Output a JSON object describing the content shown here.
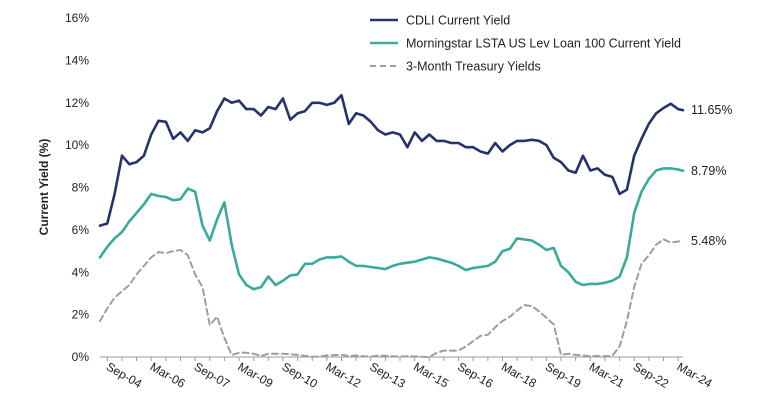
{
  "chart_data": {
    "type": "line",
    "ylabel": "Current Yield (%)",
    "ylim": [
      0,
      16
    ],
    "yticks": [
      0,
      2,
      4,
      6,
      8,
      10,
      12,
      14,
      16
    ],
    "ytick_labels": [
      "0%",
      "2%",
      "4%",
      "6%",
      "8%",
      "10%",
      "12%",
      "14%",
      "16%"
    ],
    "xlim": [
      "2004-06",
      "2024-05"
    ],
    "xtick_positions": [
      "2004-09",
      "2006-03",
      "2007-09",
      "2009-03",
      "2010-09",
      "2012-03",
      "2013-09",
      "2015-03",
      "2016-09",
      "2018-03",
      "2019-09",
      "2021-03",
      "2022-09",
      "2024-03"
    ],
    "xtick_labels": [
      "Sep-04",
      "Mar-06",
      "Sep-07",
      "Mar-09",
      "Sep-10",
      "Mar-12",
      "Sep-13",
      "Mar-15",
      "Sep-16",
      "Mar-18",
      "Sep-19",
      "Mar-21",
      "Sep-22",
      "Mar-24"
    ],
    "grid": false,
    "legend_position": "top-right",
    "series": [
      {
        "name": "CDLI Current Yield",
        "color": "#26326d",
        "style": "solid",
        "end_label": "11.65%",
        "points": [
          [
            "2004-06",
            6.2
          ],
          [
            "2004-09",
            6.3
          ],
          [
            "2004-12",
            7.7
          ],
          [
            "2005-03",
            9.5
          ],
          [
            "2005-06",
            9.1
          ],
          [
            "2005-09",
            9.2
          ],
          [
            "2005-12",
            9.5
          ],
          [
            "2006-03",
            10.5
          ],
          [
            "2006-06",
            11.15
          ],
          [
            "2006-09",
            11.1
          ],
          [
            "2006-12",
            10.3
          ],
          [
            "2007-03",
            10.6
          ],
          [
            "2007-06",
            10.2
          ],
          [
            "2007-09",
            10.7
          ],
          [
            "2007-12",
            10.6
          ],
          [
            "2008-03",
            10.8
          ],
          [
            "2008-06",
            11.6
          ],
          [
            "2008-09",
            12.2
          ],
          [
            "2008-12",
            12.0
          ],
          [
            "2009-03",
            12.1
          ],
          [
            "2009-06",
            11.7
          ],
          [
            "2009-09",
            11.7
          ],
          [
            "2009-12",
            11.4
          ],
          [
            "2010-03",
            11.8
          ],
          [
            "2010-06",
            11.7
          ],
          [
            "2010-09",
            12.2
          ],
          [
            "2010-12",
            11.2
          ],
          [
            "2011-03",
            11.5
          ],
          [
            "2011-06",
            11.6
          ],
          [
            "2011-09",
            12.0
          ],
          [
            "2011-12",
            12.0
          ],
          [
            "2012-03",
            11.9
          ],
          [
            "2012-06",
            12.0
          ],
          [
            "2012-09",
            12.35
          ],
          [
            "2012-12",
            11.0
          ],
          [
            "2013-03",
            11.5
          ],
          [
            "2013-06",
            11.4
          ],
          [
            "2013-09",
            11.1
          ],
          [
            "2013-12",
            10.7
          ],
          [
            "2014-03",
            10.5
          ],
          [
            "2014-06",
            10.6
          ],
          [
            "2014-09",
            10.5
          ],
          [
            "2014-12",
            9.9
          ],
          [
            "2015-03",
            10.6
          ],
          [
            "2015-06",
            10.2
          ],
          [
            "2015-09",
            10.5
          ],
          [
            "2015-12",
            10.2
          ],
          [
            "2016-03",
            10.2
          ],
          [
            "2016-06",
            10.1
          ],
          [
            "2016-09",
            10.1
          ],
          [
            "2016-12",
            9.9
          ],
          [
            "2017-03",
            9.9
          ],
          [
            "2017-06",
            9.7
          ],
          [
            "2017-09",
            9.6
          ],
          [
            "2017-12",
            10.1
          ],
          [
            "2018-03",
            9.7
          ],
          [
            "2018-06",
            10.0
          ],
          [
            "2018-09",
            10.2
          ],
          [
            "2018-12",
            10.2
          ],
          [
            "2019-03",
            10.25
          ],
          [
            "2019-06",
            10.2
          ],
          [
            "2019-09",
            10.0
          ],
          [
            "2019-12",
            9.4
          ],
          [
            "2020-03",
            9.2
          ],
          [
            "2020-06",
            8.8
          ],
          [
            "2020-09",
            8.7
          ],
          [
            "2020-12",
            9.5
          ],
          [
            "2021-03",
            8.8
          ],
          [
            "2021-06",
            8.9
          ],
          [
            "2021-09",
            8.6
          ],
          [
            "2021-12",
            8.5
          ],
          [
            "2022-03",
            7.7
          ],
          [
            "2022-06",
            7.9
          ],
          [
            "2022-09",
            9.5
          ],
          [
            "2022-12",
            10.3
          ],
          [
            "2023-03",
            11.0
          ],
          [
            "2023-06",
            11.5
          ],
          [
            "2023-09",
            11.75
          ],
          [
            "2023-12",
            11.95
          ],
          [
            "2024-03",
            11.7
          ],
          [
            "2024-05",
            11.65
          ]
        ]
      },
      {
        "name": "Morningstar LSTA US Lev Loan 100 Current Yield",
        "color": "#3aaa9c",
        "style": "solid",
        "end_label": "8.79%",
        "points": [
          [
            "2004-06",
            4.7
          ],
          [
            "2004-09",
            5.2
          ],
          [
            "2004-12",
            5.6
          ],
          [
            "2005-03",
            5.9
          ],
          [
            "2005-06",
            6.4
          ],
          [
            "2005-09",
            6.8
          ],
          [
            "2005-12",
            7.2
          ],
          [
            "2006-03",
            7.7
          ],
          [
            "2006-06",
            7.6
          ],
          [
            "2006-09",
            7.55
          ],
          [
            "2006-12",
            7.4
          ],
          [
            "2007-03",
            7.45
          ],
          [
            "2007-06",
            7.95
          ],
          [
            "2007-09",
            7.8
          ],
          [
            "2007-12",
            6.2
          ],
          [
            "2008-03",
            5.5
          ],
          [
            "2008-06",
            6.5
          ],
          [
            "2008-09",
            7.3
          ],
          [
            "2008-12",
            5.3
          ],
          [
            "2009-03",
            3.9
          ],
          [
            "2009-06",
            3.4
          ],
          [
            "2009-09",
            3.2
          ],
          [
            "2009-12",
            3.3
          ],
          [
            "2010-03",
            3.8
          ],
          [
            "2010-06",
            3.4
          ],
          [
            "2010-09",
            3.6
          ],
          [
            "2010-12",
            3.85
          ],
          [
            "2011-03",
            3.9
          ],
          [
            "2011-06",
            4.4
          ],
          [
            "2011-09",
            4.4
          ],
          [
            "2011-12",
            4.6
          ],
          [
            "2012-03",
            4.7
          ],
          [
            "2012-06",
            4.7
          ],
          [
            "2012-09",
            4.75
          ],
          [
            "2012-12",
            4.5
          ],
          [
            "2013-03",
            4.3
          ],
          [
            "2013-06",
            4.3
          ],
          [
            "2013-09",
            4.25
          ],
          [
            "2013-12",
            4.2
          ],
          [
            "2014-03",
            4.15
          ],
          [
            "2014-06",
            4.3
          ],
          [
            "2014-09",
            4.4
          ],
          [
            "2014-12",
            4.45
          ],
          [
            "2015-03",
            4.5
          ],
          [
            "2015-06",
            4.6
          ],
          [
            "2015-09",
            4.7
          ],
          [
            "2015-12",
            4.65
          ],
          [
            "2016-03",
            4.55
          ],
          [
            "2016-06",
            4.45
          ],
          [
            "2016-09",
            4.3
          ],
          [
            "2016-12",
            4.1
          ],
          [
            "2017-03",
            4.2
          ],
          [
            "2017-06",
            4.25
          ],
          [
            "2017-09",
            4.3
          ],
          [
            "2017-12",
            4.5
          ],
          [
            "2018-03",
            5.0
          ],
          [
            "2018-06",
            5.1
          ],
          [
            "2018-09",
            5.6
          ],
          [
            "2018-12",
            5.55
          ],
          [
            "2019-03",
            5.5
          ],
          [
            "2019-06",
            5.3
          ],
          [
            "2019-09",
            5.05
          ],
          [
            "2019-12",
            5.15
          ],
          [
            "2020-03",
            4.3
          ],
          [
            "2020-06",
            4.0
          ],
          [
            "2020-09",
            3.55
          ],
          [
            "2020-12",
            3.4
          ],
          [
            "2021-03",
            3.45
          ],
          [
            "2021-06",
            3.45
          ],
          [
            "2021-09",
            3.5
          ],
          [
            "2021-12",
            3.6
          ],
          [
            "2022-03",
            3.8
          ],
          [
            "2022-06",
            4.7
          ],
          [
            "2022-09",
            6.8
          ],
          [
            "2022-12",
            7.8
          ],
          [
            "2023-03",
            8.4
          ],
          [
            "2023-06",
            8.8
          ],
          [
            "2023-09",
            8.9
          ],
          [
            "2023-12",
            8.9
          ],
          [
            "2024-03",
            8.85
          ],
          [
            "2024-05",
            8.79
          ]
        ]
      },
      {
        "name": "3-Month Treasury Yields",
        "color": "#9e9e9e",
        "style": "dashed",
        "end_label": "5.48%",
        "points": [
          [
            "2004-06",
            1.7
          ],
          [
            "2004-09",
            2.3
          ],
          [
            "2004-12",
            2.8
          ],
          [
            "2005-03",
            3.1
          ],
          [
            "2005-06",
            3.4
          ],
          [
            "2005-09",
            3.9
          ],
          [
            "2005-12",
            4.3
          ],
          [
            "2006-03",
            4.7
          ],
          [
            "2006-06",
            4.95
          ],
          [
            "2006-09",
            4.9
          ],
          [
            "2006-12",
            5.0
          ],
          [
            "2007-03",
            5.05
          ],
          [
            "2007-06",
            4.8
          ],
          [
            "2007-09",
            3.9
          ],
          [
            "2007-12",
            3.3
          ],
          [
            "2008-03",
            1.5
          ],
          [
            "2008-06",
            1.9
          ],
          [
            "2008-09",
            0.9
          ],
          [
            "2008-12",
            0.1
          ],
          [
            "2009-03",
            0.2
          ],
          [
            "2009-06",
            0.2
          ],
          [
            "2009-09",
            0.15
          ],
          [
            "2009-12",
            0.05
          ],
          [
            "2010-03",
            0.15
          ],
          [
            "2010-06",
            0.15
          ],
          [
            "2010-09",
            0.15
          ],
          [
            "2010-12",
            0.13
          ],
          [
            "2011-03",
            0.1
          ],
          [
            "2011-06",
            0.05
          ],
          [
            "2011-09",
            0.02
          ],
          [
            "2011-12",
            0.02
          ],
          [
            "2012-03",
            0.08
          ],
          [
            "2012-06",
            0.09
          ],
          [
            "2012-09",
            0.1
          ],
          [
            "2012-12",
            0.05
          ],
          [
            "2013-03",
            0.07
          ],
          [
            "2013-06",
            0.04
          ],
          [
            "2013-09",
            0.02
          ],
          [
            "2013-12",
            0.07
          ],
          [
            "2014-03",
            0.05
          ],
          [
            "2014-06",
            0.04
          ],
          [
            "2014-09",
            0.02
          ],
          [
            "2014-12",
            0.04
          ],
          [
            "2015-03",
            0.03
          ],
          [
            "2015-06",
            0.01
          ],
          [
            "2015-09",
            0.0
          ],
          [
            "2015-12",
            0.2
          ],
          [
            "2016-03",
            0.3
          ],
          [
            "2016-06",
            0.3
          ],
          [
            "2016-09",
            0.3
          ],
          [
            "2016-12",
            0.5
          ],
          [
            "2017-03",
            0.75
          ],
          [
            "2017-06",
            1.0
          ],
          [
            "2017-09",
            1.05
          ],
          [
            "2017-12",
            1.4
          ],
          [
            "2018-03",
            1.7
          ],
          [
            "2018-06",
            1.9
          ],
          [
            "2018-09",
            2.2
          ],
          [
            "2018-12",
            2.45
          ],
          [
            "2019-03",
            2.4
          ],
          [
            "2019-06",
            2.15
          ],
          [
            "2019-09",
            1.85
          ],
          [
            "2019-12",
            1.55
          ],
          [
            "2020-03",
            0.1
          ],
          [
            "2020-06",
            0.15
          ],
          [
            "2020-09",
            0.1
          ],
          [
            "2020-12",
            0.08
          ],
          [
            "2021-03",
            0.03
          ],
          [
            "2021-06",
            0.05
          ],
          [
            "2021-09",
            0.04
          ],
          [
            "2021-12",
            0.05
          ],
          [
            "2022-03",
            0.5
          ],
          [
            "2022-06",
            1.7
          ],
          [
            "2022-09",
            3.3
          ],
          [
            "2022-12",
            4.4
          ],
          [
            "2023-03",
            4.8
          ],
          [
            "2023-06",
            5.3
          ],
          [
            "2023-09",
            5.55
          ],
          [
            "2023-12",
            5.4
          ],
          [
            "2024-03",
            5.45
          ],
          [
            "2024-05",
            5.48
          ]
        ]
      }
    ]
  }
}
